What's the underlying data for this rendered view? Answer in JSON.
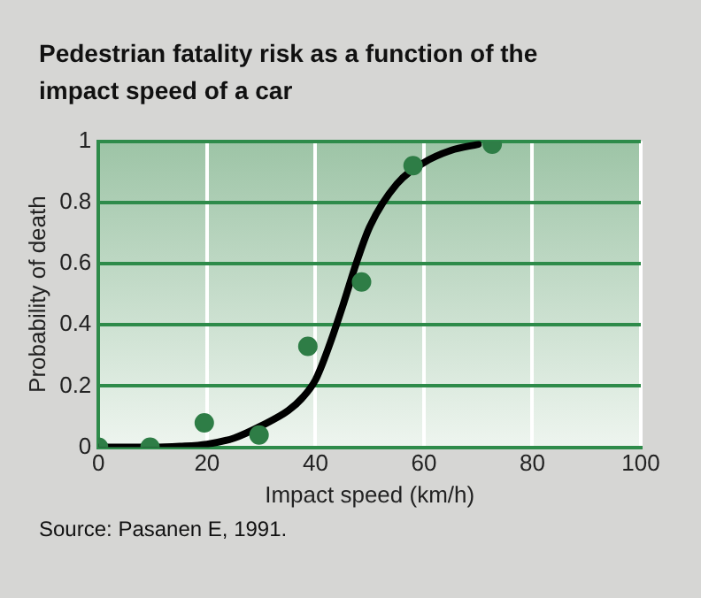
{
  "chart_data": {
    "type": "scatter",
    "title": "Pedestrian fatality risk as a function of the impact speed of a car",
    "xlabel": "Impact speed (km/h)",
    "ylabel": "Probability of death",
    "xlim": [
      0,
      100
    ],
    "xticks": [
      0,
      20,
      40,
      60,
      80,
      100
    ],
    "ylim": [
      0,
      1
    ],
    "yticks": [
      0,
      0.2,
      0.4,
      0.6,
      0.8,
      1
    ],
    "grid": true,
    "legend": false,
    "marker": "circle",
    "annotations": [
      "Source: Pasanen E, 1991."
    ],
    "series": [
      {
        "type": "scatter",
        "color": "#2e7d46",
        "x": [
          0,
          9.5,
          19.5,
          29.6,
          38.6,
          48.5,
          58,
          72.6
        ],
        "values": [
          0,
          0,
          0.08,
          0.04,
          0.33,
          0.54,
          0.92,
          0.99
        ]
      },
      {
        "type": "line",
        "color": "#000000",
        "marker": "none",
        "line_style": "solid",
        "x": [
          0,
          10,
          15,
          20,
          25,
          30,
          35,
          37.5,
          40,
          42.5,
          45,
          47.5,
          50,
          55,
          60,
          65,
          70
        ],
        "values": [
          0,
          0,
          0.003,
          0.01,
          0.03,
          0.07,
          0.12,
          0.16,
          0.22,
          0.33,
          0.46,
          0.6,
          0.72,
          0.86,
          0.93,
          0.97,
          0.99
        ]
      }
    ]
  }
}
